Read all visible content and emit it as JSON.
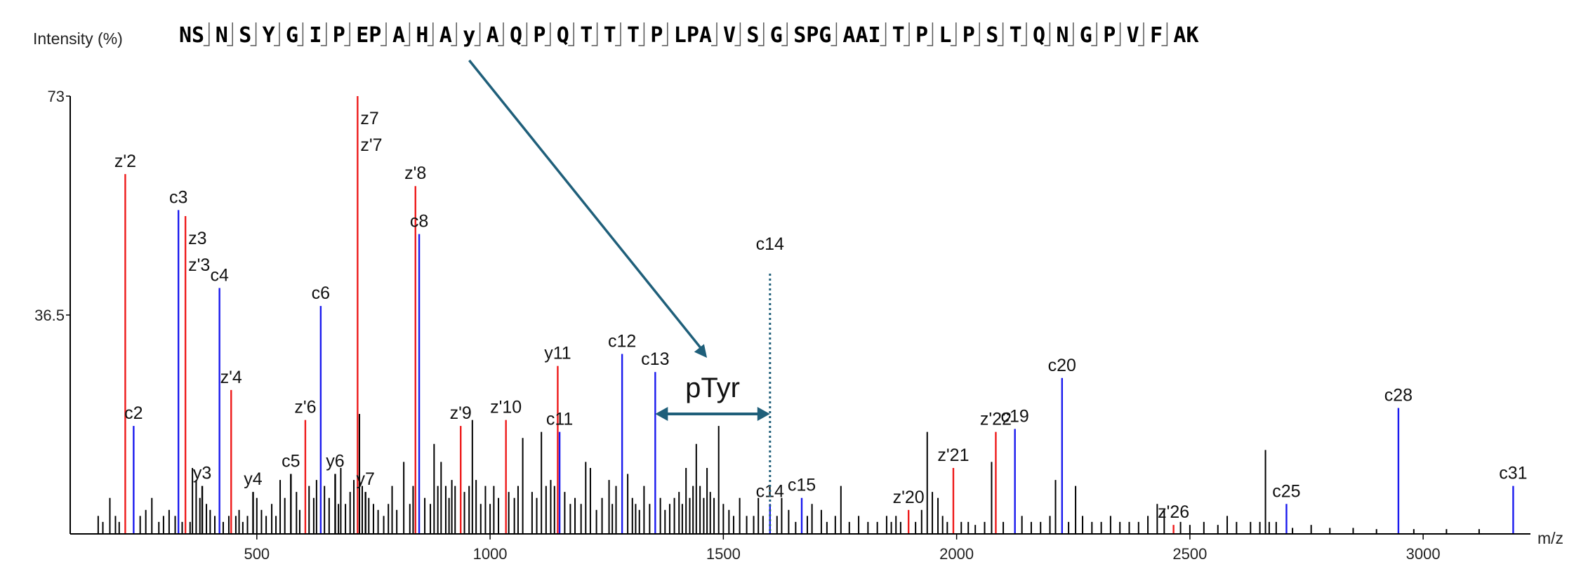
{
  "chart_data": {
    "type": "bar",
    "title": "",
    "ylabel": "Intensity (%)",
    "xlabel": "m/z",
    "xlim": [
      100,
      3230
    ],
    "ylim": [
      0,
      73
    ],
    "xticks": [
      500,
      1000,
      1500,
      2000,
      2500,
      3000
    ],
    "yticks": [
      36.5,
      73
    ],
    "ytick_labels": [
      "36.5",
      "73"
    ],
    "ymax_color": "#e02020",
    "colors": {
      "c": "#1a1aee",
      "z": "#ee1a1a",
      "y": "#ee1a1a",
      "other": "#000000",
      "annotation": "#1f5f7a"
    },
    "sequence": [
      "NS",
      "N",
      "S",
      "Y",
      "G",
      "I",
      "P",
      "EP",
      "A",
      "H",
      "A",
      "y",
      "A",
      "Q",
      "P",
      "Q",
      "T",
      "T",
      "T",
      "P",
      "LPA",
      "V",
      "S",
      "G",
      "SPG",
      "AAI",
      "T",
      "P",
      "L",
      "P",
      "S",
      "T",
      "Q",
      "N",
      "G",
      "P",
      "V",
      "F",
      "AK"
    ],
    "labeled_peaks": [
      {
        "x": 218,
        "y": 60,
        "ion": "z",
        "label": "z'2"
      },
      {
        "x": 236,
        "y": 18,
        "ion": "c",
        "label": "c2"
      },
      {
        "x": 332,
        "y": 54,
        "ion": "c",
        "label": "c3"
      },
      {
        "x": 347,
        "y": 53,
        "ion": "z",
        "label": "z3\nz'3"
      },
      {
        "x": 383,
        "y": 8,
        "ion": "other",
        "label": "y3"
      },
      {
        "x": 420,
        "y": 41,
        "ion": "c",
        "label": "c4"
      },
      {
        "x": 445,
        "y": 24,
        "ion": "z",
        "label": "z'4"
      },
      {
        "x": 492,
        "y": 7,
        "ion": "other",
        "label": "y4"
      },
      {
        "x": 573,
        "y": 10,
        "ion": "other",
        "label": "c5"
      },
      {
        "x": 604,
        "y": 19,
        "ion": "z",
        "label": "z'6"
      },
      {
        "x": 637,
        "y": 38,
        "ion": "c",
        "label": "c6"
      },
      {
        "x": 668,
        "y": 10,
        "ion": "other",
        "label": "y6"
      },
      {
        "x": 716,
        "y": 73,
        "ion": "z",
        "label": "z7\nz'7"
      },
      {
        "x": 733,
        "y": 7,
        "ion": "other",
        "label": "y7"
      },
      {
        "x": 840,
        "y": 58,
        "ion": "z",
        "label": "z'8"
      },
      {
        "x": 848,
        "y": 50,
        "ion": "c",
        "label": "c8"
      },
      {
        "x": 937,
        "y": 18,
        "ion": "z",
        "label": "z'9"
      },
      {
        "x": 1034,
        "y": 19,
        "ion": "z",
        "label": "z'10"
      },
      {
        "x": 1145,
        "y": 28,
        "ion": "z",
        "label": "y11"
      },
      {
        "x": 1149,
        "y": 17,
        "ion": "c",
        "label": "c11"
      },
      {
        "x": 1283,
        "y": 30,
        "ion": "c",
        "label": "c12"
      },
      {
        "x": 1354,
        "y": 27,
        "ion": "c",
        "label": "c13"
      },
      {
        "x": 1600,
        "y": 5,
        "ion": "c",
        "label": "c14"
      },
      {
        "x": 1668,
        "y": 6,
        "ion": "c",
        "label": "c15"
      },
      {
        "x": 1897,
        "y": 4,
        "ion": "z",
        "label": "z'20"
      },
      {
        "x": 1993,
        "y": 11,
        "ion": "z",
        "label": "z'21"
      },
      {
        "x": 2084,
        "y": 17,
        "ion": "z",
        "label": "z'22"
      },
      {
        "x": 2125,
        "y": 17.5,
        "ion": "c",
        "label": "c19"
      },
      {
        "x": 2226,
        "y": 26,
        "ion": "c",
        "label": "c20"
      },
      {
        "x": 2465,
        "y": 1.5,
        "ion": "z",
        "label": "z'26"
      },
      {
        "x": 2707,
        "y": 5,
        "ion": "c",
        "label": "c25"
      },
      {
        "x": 2947,
        "y": 21,
        "ion": "c",
        "label": "c28"
      },
      {
        "x": 3193,
        "y": 8,
        "ion": "c",
        "label": "c31"
      }
    ],
    "unlabeled_peaks": [
      [
        160,
        3
      ],
      [
        170,
        2
      ],
      [
        185,
        6
      ],
      [
        197,
        3
      ],
      [
        205,
        2
      ],
      [
        250,
        3
      ],
      [
        262,
        4
      ],
      [
        275,
        6
      ],
      [
        290,
        2
      ],
      [
        300,
        3
      ],
      [
        312,
        4
      ],
      [
        325,
        3
      ],
      [
        340,
        2
      ],
      [
        357,
        2
      ],
      [
        362,
        11
      ],
      [
        370,
        9
      ],
      [
        378,
        6
      ],
      [
        392,
        5
      ],
      [
        400,
        4
      ],
      [
        410,
        3
      ],
      [
        428,
        2
      ],
      [
        440,
        3
      ],
      [
        455,
        3
      ],
      [
        462,
        4
      ],
      [
        470,
        2
      ],
      [
        480,
        3
      ],
      [
        500,
        6
      ],
      [
        510,
        4
      ],
      [
        520,
        3
      ],
      [
        532,
        5
      ],
      [
        541,
        3
      ],
      [
        550,
        9
      ],
      [
        560,
        6
      ],
      [
        585,
        7
      ],
      [
        592,
        4
      ],
      [
        612,
        8
      ],
      [
        622,
        6
      ],
      [
        628,
        9
      ],
      [
        645,
        8
      ],
      [
        655,
        6
      ],
      [
        675,
        5
      ],
      [
        680,
        11
      ],
      [
        690,
        5
      ],
      [
        700,
        7
      ],
      [
        708,
        9
      ],
      [
        720,
        20
      ],
      [
        726,
        8
      ],
      [
        740,
        6
      ],
      [
        750,
        5
      ],
      [
        760,
        4
      ],
      [
        772,
        3
      ],
      [
        782,
        5
      ],
      [
        790,
        8
      ],
      [
        800,
        4
      ],
      [
        815,
        12
      ],
      [
        828,
        5
      ],
      [
        835,
        8
      ],
      [
        860,
        6
      ],
      [
        872,
        5
      ],
      [
        880,
        15
      ],
      [
        888,
        8
      ],
      [
        895,
        12
      ],
      [
        905,
        8
      ],
      [
        912,
        6
      ],
      [
        918,
        9
      ],
      [
        925,
        8
      ],
      [
        945,
        7
      ],
      [
        955,
        8
      ],
      [
        962,
        19
      ],
      [
        970,
        9
      ],
      [
        980,
        5
      ],
      [
        990,
        8
      ],
      [
        1000,
        5
      ],
      [
        1008,
        8
      ],
      [
        1018,
        6
      ],
      [
        1040,
        7
      ],
      [
        1052,
        6
      ],
      [
        1060,
        8
      ],
      [
        1070,
        16
      ],
      [
        1090,
        7
      ],
      [
        1100,
        6
      ],
      [
        1110,
        17
      ],
      [
        1120,
        8
      ],
      [
        1130,
        9
      ],
      [
        1138,
        8
      ],
      [
        1160,
        7
      ],
      [
        1172,
        5
      ],
      [
        1182,
        6
      ],
      [
        1195,
        5
      ],
      [
        1205,
        12
      ],
      [
        1215,
        11
      ],
      [
        1228,
        4
      ],
      [
        1240,
        6
      ],
      [
        1255,
        9
      ],
      [
        1262,
        5
      ],
      [
        1270,
        8
      ],
      [
        1295,
        10
      ],
      [
        1305,
        6
      ],
      [
        1312,
        5
      ],
      [
        1320,
        4
      ],
      [
        1330,
        8
      ],
      [
        1342,
        5
      ],
      [
        1365,
        6
      ],
      [
        1375,
        4
      ],
      [
        1385,
        5
      ],
      [
        1395,
        6
      ],
      [
        1405,
        7
      ],
      [
        1412,
        5
      ],
      [
        1420,
        11
      ],
      [
        1428,
        6
      ],
      [
        1435,
        8
      ],
      [
        1442,
        15
      ],
      [
        1450,
        8
      ],
      [
        1458,
        6
      ],
      [
        1465,
        11
      ],
      [
        1472,
        7
      ],
      [
        1480,
        6
      ],
      [
        1490,
        18
      ],
      [
        1500,
        5
      ],
      [
        1512,
        4
      ],
      [
        1522,
        3
      ],
      [
        1535,
        6
      ],
      [
        1550,
        3
      ],
      [
        1565,
        3
      ],
      [
        1575,
        6
      ],
      [
        1585,
        3
      ],
      [
        1615,
        3
      ],
      [
        1625,
        6
      ],
      [
        1640,
        4
      ],
      [
        1655,
        2
      ],
      [
        1680,
        3
      ],
      [
        1690,
        5
      ],
      [
        1710,
        4
      ],
      [
        1722,
        2
      ],
      [
        1740,
        3
      ],
      [
        1752,
        8
      ],
      [
        1770,
        2
      ],
      [
        1790,
        3
      ],
      [
        1810,
        2
      ],
      [
        1830,
        2
      ],
      [
        1850,
        3
      ],
      [
        1860,
        2
      ],
      [
        1870,
        3
      ],
      [
        1880,
        2
      ],
      [
        1912,
        2
      ],
      [
        1925,
        4
      ],
      [
        1937,
        17
      ],
      [
        1948,
        7
      ],
      [
        1960,
        6
      ],
      [
        1970,
        3
      ],
      [
        1980,
        2
      ],
      [
        2010,
        2
      ],
      [
        2025,
        2
      ],
      [
        2040,
        1.5
      ],
      [
        2060,
        2
      ],
      [
        2075,
        12
      ],
      [
        2100,
        2
      ],
      [
        2140,
        3
      ],
      [
        2160,
        2
      ],
      [
        2180,
        2
      ],
      [
        2200,
        3
      ],
      [
        2212,
        9
      ],
      [
        2240,
        2
      ],
      [
        2255,
        8
      ],
      [
        2270,
        3
      ],
      [
        2290,
        2
      ],
      [
        2310,
        2
      ],
      [
        2330,
        3
      ],
      [
        2350,
        2
      ],
      [
        2370,
        2
      ],
      [
        2390,
        2
      ],
      [
        2410,
        3
      ],
      [
        2430,
        5
      ],
      [
        2445,
        4
      ],
      [
        2480,
        2
      ],
      [
        2500,
        1.5
      ],
      [
        2530,
        2
      ],
      [
        2560,
        1.5
      ],
      [
        2580,
        3
      ],
      [
        2600,
        2
      ],
      [
        2630,
        2
      ],
      [
        2650,
        2
      ],
      [
        2662,
        14
      ],
      [
        2670,
        2
      ],
      [
        2685,
        2
      ],
      [
        2720,
        1
      ],
      [
        2760,
        1.5
      ],
      [
        2800,
        1
      ],
      [
        2850,
        1
      ],
      [
        2900,
        0.8
      ],
      [
        2980,
        0.8
      ],
      [
        3050,
        0.8
      ],
      [
        3120,
        0.8
      ]
    ],
    "annotations": [
      {
        "text": "pTyr",
        "type": "mass-gap",
        "from_x": 1354,
        "to_x": 1600,
        "y": 20,
        "points_to_residue": 11
      },
      {
        "text": "c14",
        "type": "marker-line",
        "x": 1600
      }
    ]
  }
}
